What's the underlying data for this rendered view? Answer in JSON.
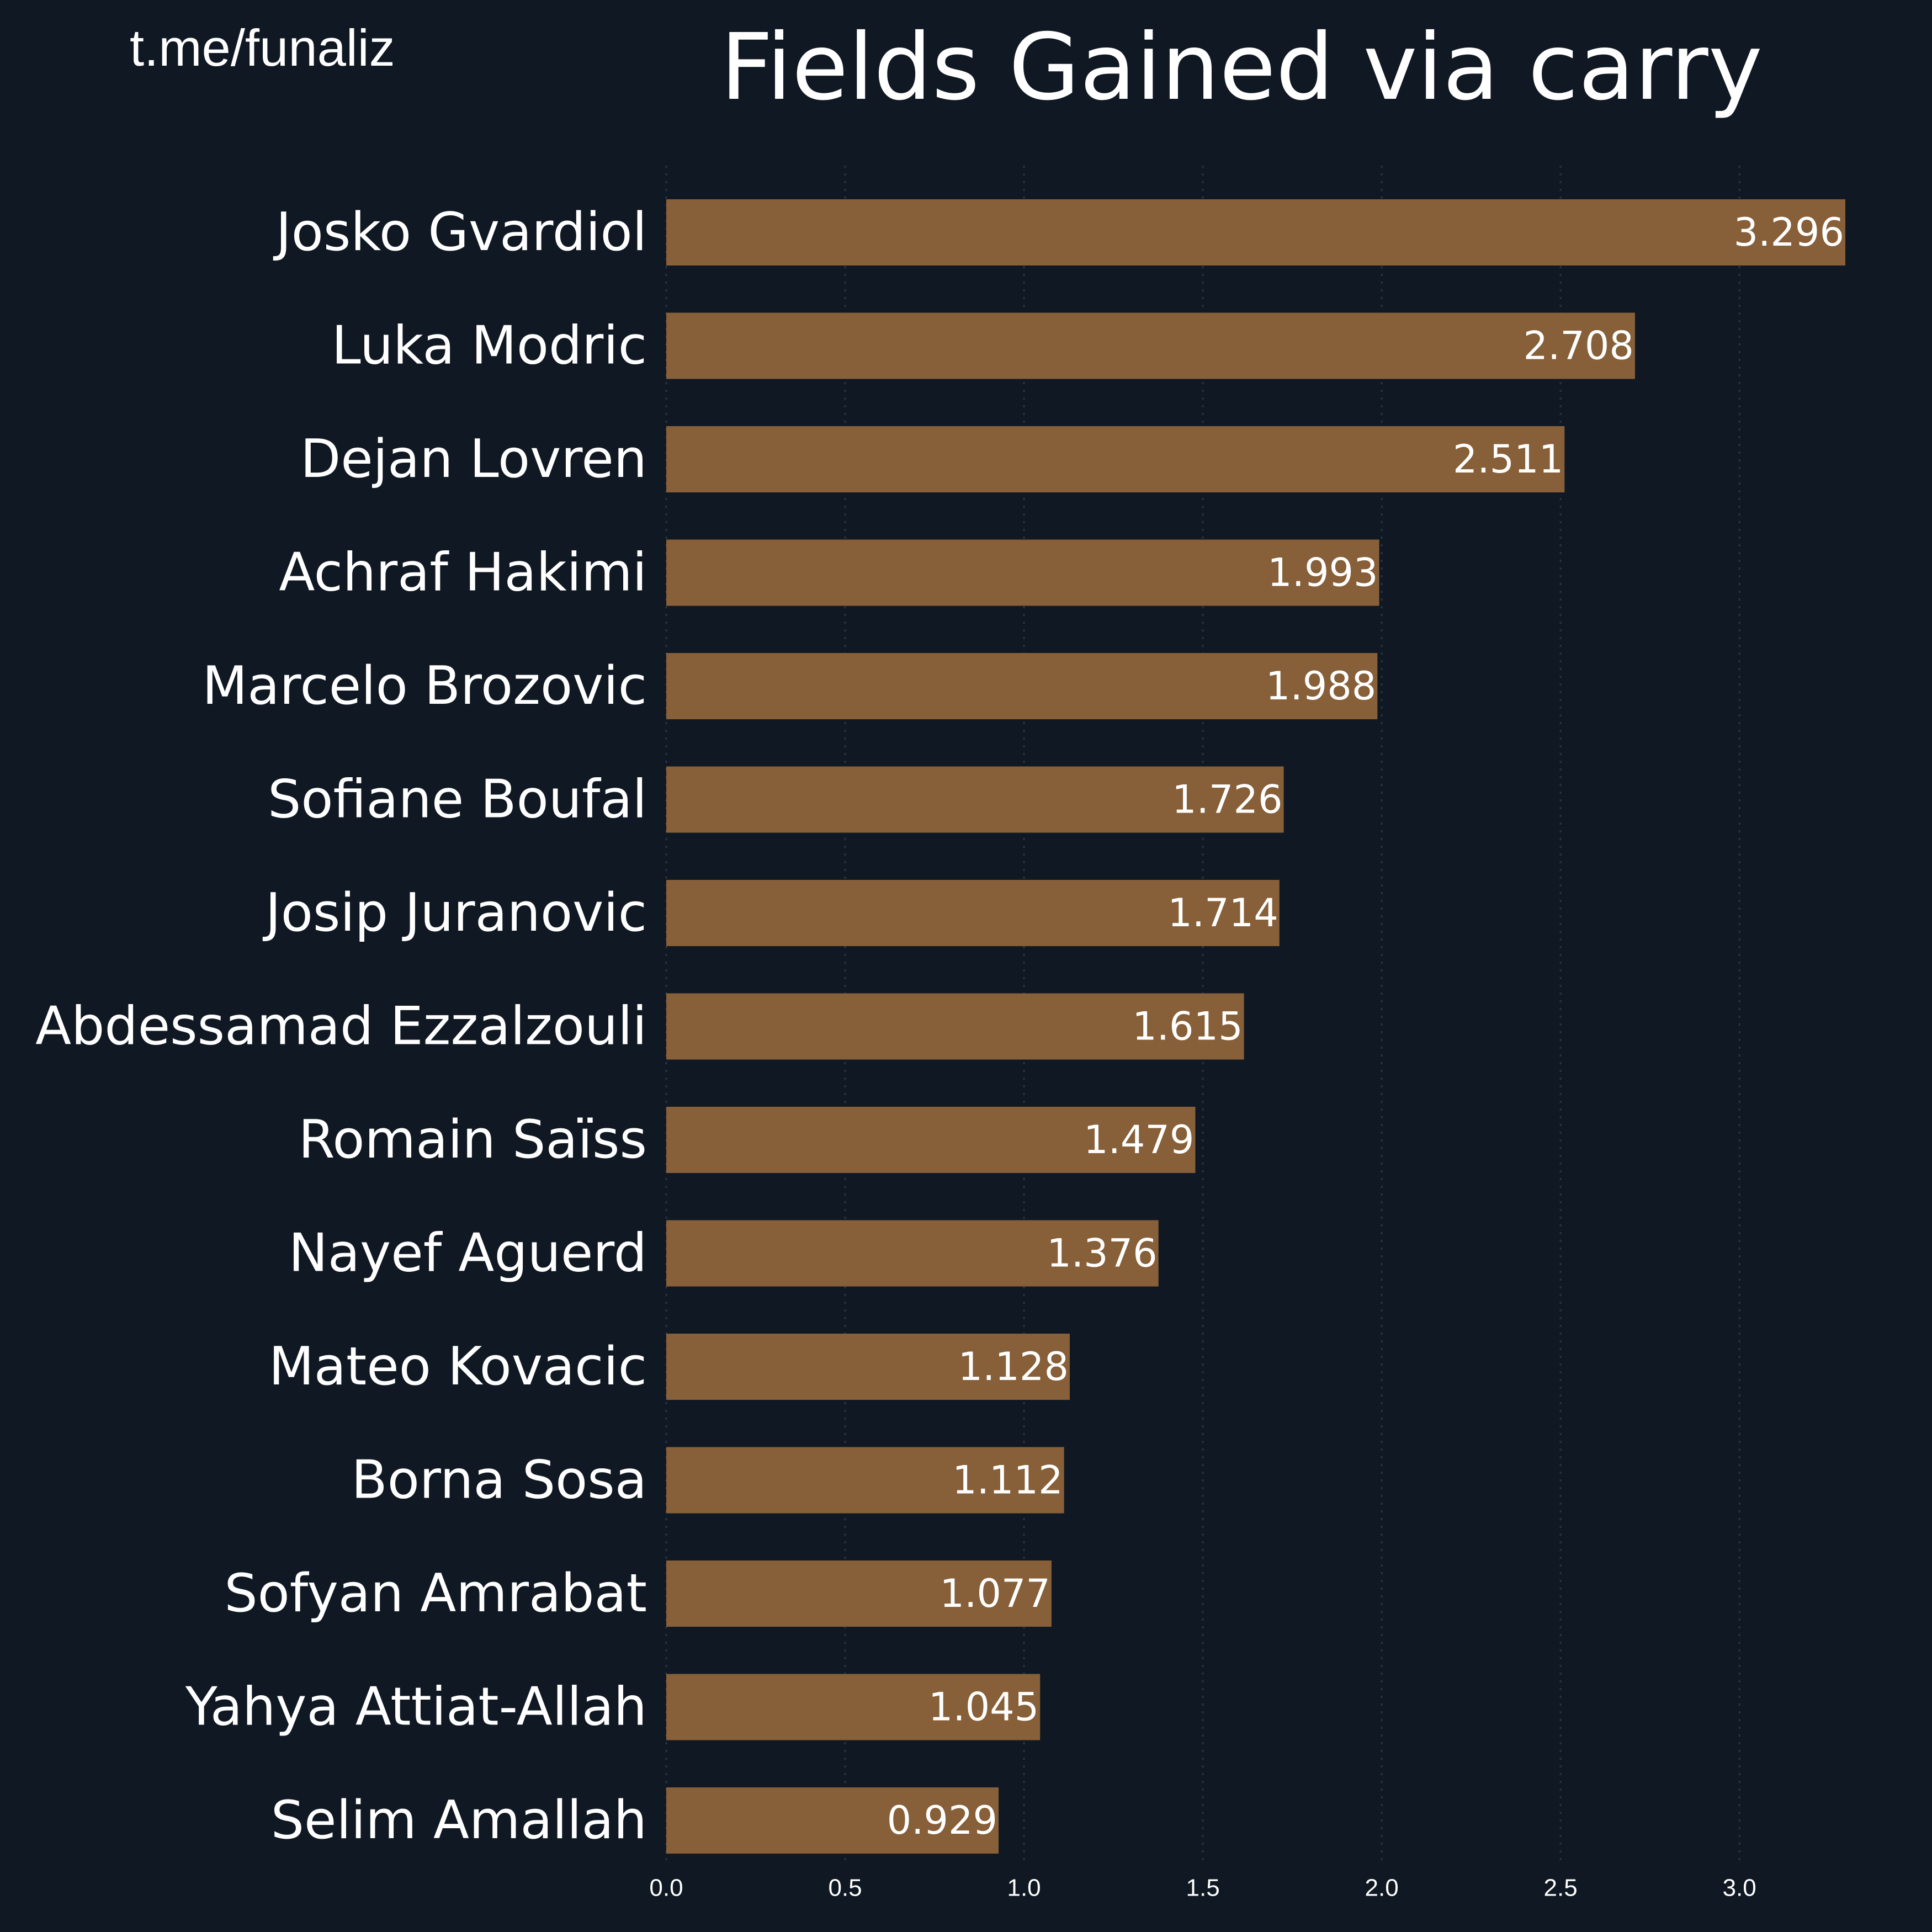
{
  "header": {
    "watermark": "t.me/funaliz",
    "title": "Fields Gained via carry"
  },
  "colors": {
    "background": "#101923",
    "bar": "#875f38",
    "text": "#ffffff"
  },
  "chart_data": {
    "type": "bar",
    "orientation": "horizontal",
    "title": "Fields Gained via carry",
    "xlabel": "",
    "ylabel": "",
    "categories": [
      "Josko Gvardiol",
      "Luka Modric",
      "Dejan Lovren",
      "Achraf Hakimi",
      "Marcelo Brozovic",
      "Sofiane Boufal",
      "Josip Juranovic",
      "Abdessamad Ezzalzouli",
      "Romain Saïss",
      "Nayef Aguerd",
      "Mateo Kovacic",
      "Borna Sosa",
      "Sofyan Amrabat",
      "Yahya Attiat-Allah",
      "Selim Amallah"
    ],
    "values": [
      3.296,
      2.708,
      2.511,
      1.993,
      1.988,
      1.726,
      1.714,
      1.615,
      1.479,
      1.376,
      1.128,
      1.112,
      1.077,
      1.045,
      0.929
    ],
    "value_labels": [
      "3.296",
      "2.708",
      "2.511",
      "1.993",
      "1.988",
      "1.726",
      "1.714",
      "1.615",
      "1.479",
      "1.376",
      "1.128",
      "1.112",
      "1.077",
      "1.045",
      "0.929"
    ],
    "xticks": [
      0.0,
      0.5,
      1.0,
      1.5,
      2.0,
      2.5,
      3.0
    ],
    "xtick_labels": [
      "0.0",
      "0.5",
      "1.0",
      "1.5",
      "2.0",
      "2.5",
      "3.0"
    ],
    "xlim": [
      0,
      3.296
    ],
    "grid": true,
    "legend": "none"
  }
}
